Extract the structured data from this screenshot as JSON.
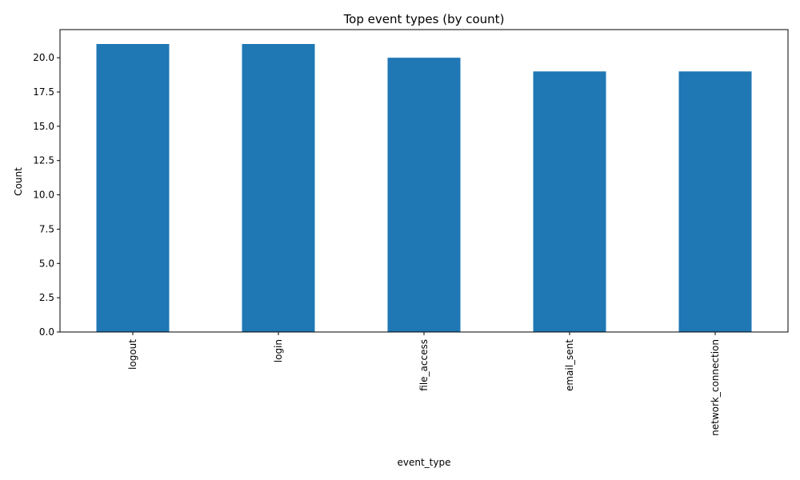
{
  "chart_data": {
    "type": "bar",
    "title": "Top event types (by count)",
    "xlabel": "event_type",
    "ylabel": "Count",
    "categories": [
      "logout",
      "login",
      "file_access",
      "email_sent",
      "network_connection"
    ],
    "values": [
      21,
      21,
      20,
      19,
      19
    ],
    "ylim": [
      0,
      22.05
    ],
    "yticks": [
      0,
      2.5,
      5,
      7.5,
      10,
      12.5,
      15,
      17.5,
      20
    ],
    "ytick_labels": [
      "0.0",
      "2.5",
      "5.0",
      "7.5",
      "10.0",
      "12.5",
      "15.0",
      "17.5",
      "20.0"
    ],
    "grid": false,
    "legend": "none",
    "bar_color": "#1f77b4"
  }
}
